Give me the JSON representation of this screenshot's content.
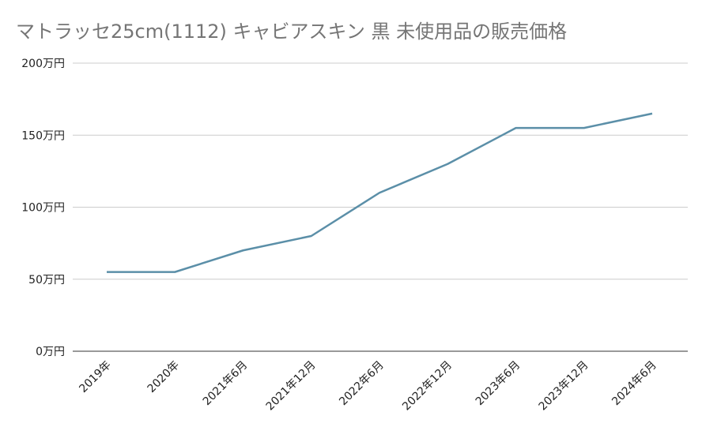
{
  "chart_data": {
    "type": "line",
    "title": "マトラッセ25cm(1112) キャビアスキン 黒 未使用品の販売価格",
    "categories": [
      "2019年",
      "2020年",
      "2021年6月",
      "2021年12月",
      "2022年6月",
      "2022年12月",
      "2023年6月",
      "2023年12月",
      "2024年6月"
    ],
    "series": [
      {
        "values": [
          55,
          55,
          70,
          80,
          110,
          130,
          155,
          155,
          165
        ]
      }
    ],
    "y_unit_suffix": "万円",
    "ylim": [
      0,
      200
    ],
    "yticks": [
      0,
      50,
      100,
      150,
      200
    ],
    "ytick_labels": [
      "0万円",
      "50万円",
      "100万円",
      "150万円",
      "200万円"
    ],
    "xlabel": "",
    "ylabel": "",
    "grid": true,
    "legend": "none",
    "colors": {
      "line": "#5b8fa8",
      "grid": "#cccccc",
      "axis": "#333333",
      "title": "#757575",
      "text": "#222222"
    }
  }
}
